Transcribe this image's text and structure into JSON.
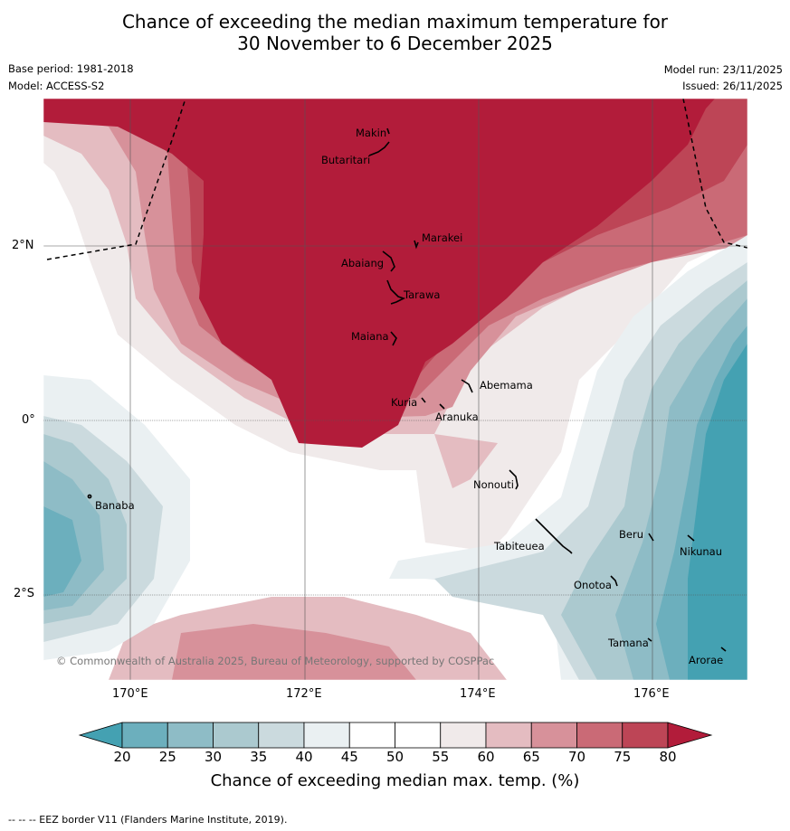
{
  "title_line1": "Chance of exceeding the median maximum temperature for",
  "title_line2": "30 November to 6 December 2025",
  "base_period": "Base period: 1981-2018",
  "model": "Model: ACCESS-S2",
  "model_run": "Model run: 23/11/2025",
  "issued": "Issued: 26/11/2025",
  "lat_labels": [
    "2°N",
    "0°",
    "2°S"
  ],
  "lon_labels": [
    "170°E",
    "172°E",
    "174°E",
    "176°E"
  ],
  "places": [
    "Makin",
    "Butaritari",
    "Marakei",
    "Abaiang",
    "Tarawa",
    "Maiana",
    "Abemama",
    "Kuria",
    "Aranuka",
    "Nonouti",
    "Banaba",
    "Beru",
    "Nikunau",
    "Tabiteuea",
    "Onotoa",
    "Tamana",
    "Arorae"
  ],
  "copyright": "© Commonwealth of Australia 2025, Bureau of Meteorology, supported by COSPPac",
  "colorbar": {
    "ticks": [
      "20",
      "25",
      "30",
      "35",
      "40",
      "45",
      "50",
      "55",
      "60",
      "65",
      "70",
      "75",
      "80"
    ],
    "colors": [
      "#44a1b2",
      "#6cafbd",
      "#8ebcc6",
      "#abc9cf",
      "#cbdade",
      "#eaf0f2",
      "#ffffff",
      "#ffffff",
      "#f0eaea",
      "#e4bcc1",
      "#d7919a",
      "#ca6a76",
      "#bd4556",
      "#b21c3a"
    ],
    "title": "Chance of exceeding median max. temp. (%)"
  },
  "footer": "--  --  -- EEZ border V11 (Flanders Marine Institute, 2019)."
}
